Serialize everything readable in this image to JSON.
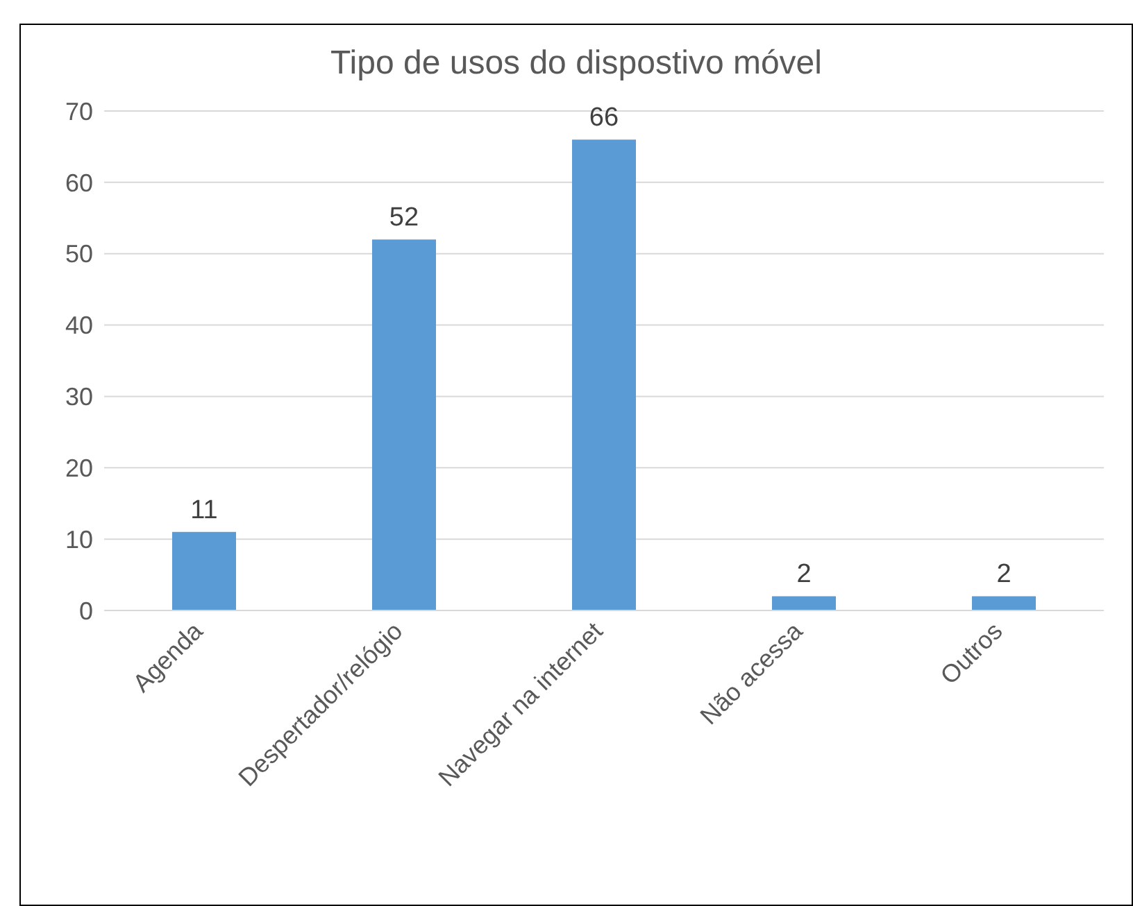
{
  "chart_data": {
    "type": "bar",
    "title": "Tipo de usos do dispostivo móvel",
    "categories": [
      "Agenda",
      "Despertador/relógio",
      "Navegar na internet",
      "Não acessa",
      "Outros"
    ],
    "values": [
      11,
      52,
      66,
      2,
      2
    ],
    "color": "#5b9bd5",
    "ylim": [
      0,
      70
    ],
    "yticks": [
      0,
      10,
      20,
      30,
      40,
      50,
      60,
      70
    ],
    "grid": "y",
    "data_labels": true
  }
}
